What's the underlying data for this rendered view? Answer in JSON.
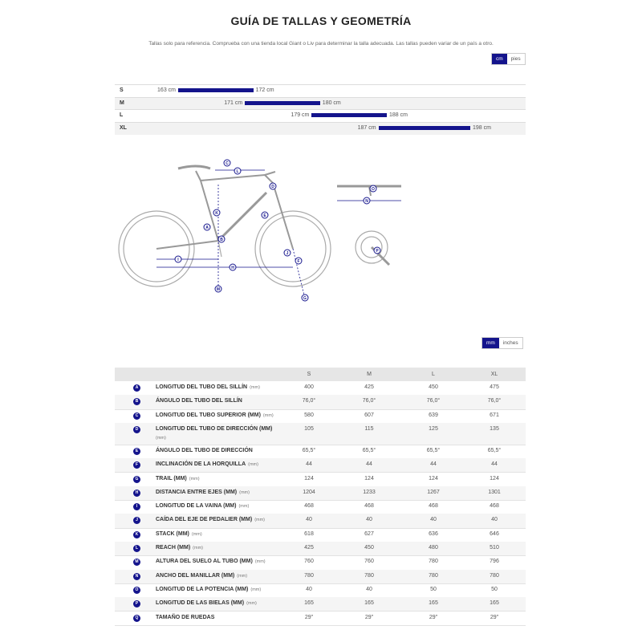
{
  "header": {
    "title": "GUÍA DE TALLAS Y GEOMETRÍA",
    "note": "Tallas solo para referencia. Comprueba con una tienda local Giant o Liv para determinar la talla adecuada. Las tallas pueden variar de un país a otro."
  },
  "size_chart": {
    "units": [
      "cm",
      "pies"
    ],
    "rows": [
      {
        "size": "S",
        "from": {
          "value": 163,
          "label": "163 cm"
        },
        "to": {
          "value": 172,
          "label": "172 cm"
        }
      },
      {
        "size": "M",
        "from": {
          "value": 171,
          "label": "171 cm"
        },
        "to": {
          "value": 180,
          "label": "180 cm"
        }
      },
      {
        "size": "L",
        "from": {
          "value": 179,
          "label": "179 cm"
        },
        "to": {
          "value": 188,
          "label": "188 cm"
        }
      },
      {
        "size": "XL",
        "from": {
          "value": 187,
          "label": "187 cm"
        },
        "to": {
          "value": 198,
          "label": "198 cm"
        }
      }
    ]
  },
  "table": {
    "units": [
      "mm",
      "inches"
    ],
    "sizes": [
      "S",
      "M",
      "L",
      "XL"
    ],
    "rows": [
      {
        "letter": "A",
        "name": "LONGITUD DEL TUBO DEL SILLÍN",
        "unit": "(mm)",
        "values": [
          400,
          425,
          450,
          475
        ]
      },
      {
        "letter": "B",
        "name": "ÁNGULO DEL TUBO DEL SILLÍN",
        "values": [
          "76,0°",
          "76,0°",
          "76,0°",
          "76,0°"
        ]
      },
      {
        "letter": "C",
        "name": "LONGITUD DEL TUBO SUPERIOR (MM)",
        "unit": "(mm)",
        "values": [
          580,
          607,
          639,
          671
        ]
      },
      {
        "letter": "D",
        "name": "LONGITUD DEL TUBO DE DIRECCIÓN (MM)",
        "unit": "(mm)",
        "values": [
          105,
          115,
          125,
          135
        ]
      },
      {
        "letter": "E",
        "name": "ÁNGULO DEL TUBO DE DIRECCIÓN",
        "values": [
          "65,5°",
          "65,5°",
          "65,5°",
          "65,5°"
        ]
      },
      {
        "letter": "F",
        "name": "INCLINACIÓN DE LA HORQUILLA",
        "unit": "(mm)",
        "values": [
          44,
          44,
          44,
          44
        ]
      },
      {
        "letter": "G",
        "name": "TRAIL (MM)",
        "unit": "(mm)",
        "values": [
          124,
          124,
          124,
          124
        ]
      },
      {
        "letter": "H",
        "name": "DISTANCIA ENTRE EJES (MM)",
        "unit": "(mm)",
        "values": [
          1204,
          1233,
          1267,
          1301
        ]
      },
      {
        "letter": "I",
        "name": "LONGITUD DE LA VAINA (MM)",
        "unit": "(mm)",
        "values": [
          468,
          468,
          468,
          468
        ]
      },
      {
        "letter": "J",
        "name": "CAÍDA DEL EJE DE PEDALIER (MM)",
        "unit": "(mm)",
        "values": [
          40,
          40,
          40,
          40
        ]
      },
      {
        "letter": "K",
        "name": "STACK (MM)",
        "unit": "(mm)",
        "values": [
          618,
          627,
          636,
          646
        ]
      },
      {
        "letter": "L",
        "name": "REACH (MM)",
        "unit": "(mm)",
        "values": [
          425,
          450,
          480,
          510
        ]
      },
      {
        "letter": "M",
        "name": "ALTURA DEL SUELO AL TUBO (MM)",
        "unit": "(mm)",
        "values": [
          760,
          760,
          780,
          796
        ]
      },
      {
        "letter": "N",
        "name": "ANCHO DEL MANILLAR (MM)",
        "unit": "(mm)",
        "values": [
          780,
          780,
          780,
          780
        ]
      },
      {
        "letter": "O",
        "name": "LONGITUD DE LA POTENCIA (MM)",
        "unit": "(mm)",
        "values": [
          40,
          40,
          50,
          50
        ]
      },
      {
        "letter": "P",
        "name": "LONGITUD DE LAS BIELAS (MM)",
        "unit": "(mm)",
        "values": [
          165,
          165,
          165,
          165
        ]
      },
      {
        "letter": "Q",
        "name": "TAMAÑO DE RUEDAS",
        "values": [
          "29\"",
          "29\"",
          "29\"",
          "29\""
        ]
      }
    ]
  }
}
